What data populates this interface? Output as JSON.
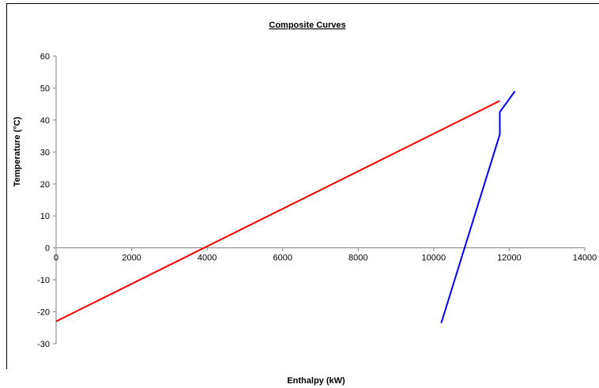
{
  "chart_data": {
    "type": "line",
    "title": "Composite Curves",
    "xlabel": "Enthalpy (kW)",
    "ylabel": "Temperature (°C)",
    "xlim": [
      0,
      14000
    ],
    "ylim": [
      -30,
      60
    ],
    "xticks": [
      0,
      2000,
      4000,
      6000,
      8000,
      10000,
      12000,
      14000
    ],
    "yticks": [
      60,
      50,
      40,
      30,
      20,
      10,
      0,
      -10,
      -20,
      -30
    ],
    "grid": false,
    "series": [
      {
        "color": "#ff0000",
        "x": [
          0,
          11750
        ],
        "y": [
          -23,
          46
        ]
      },
      {
        "color": "#0000ff",
        "x": [
          10200,
          11750,
          11750,
          12150
        ],
        "y": [
          -23.5,
          35.5,
          42.5,
          49
        ]
      }
    ]
  }
}
